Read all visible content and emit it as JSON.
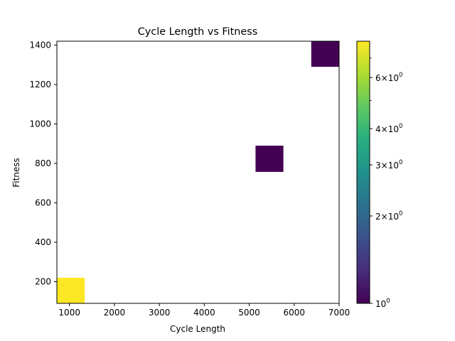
{
  "chart_data": {
    "type": "heatmap",
    "title": "Cycle Length vs Fitness",
    "xlabel": "Cycle Length",
    "ylabel": "Fitness",
    "xlim": [
      720,
      7000
    ],
    "ylim": [
      90,
      1420
    ],
    "x_ticks": [
      1000,
      2000,
      3000,
      4000,
      5000,
      6000,
      7000
    ],
    "y_ticks": [
      200,
      400,
      600,
      800,
      1000,
      1200,
      1400
    ],
    "colormap": "viridis",
    "color_scale": "log",
    "color_range": [
      1,
      8
    ],
    "colorbar_ticks": [
      {
        "value": 1,
        "label": "10^0"
      },
      {
        "value": 2,
        "label": "2×10^0"
      },
      {
        "value": 3,
        "label": "3×10^0"
      },
      {
        "value": 4,
        "label": "4×10^0"
      },
      {
        "value": 6,
        "label": "6×10^0"
      }
    ],
    "colorbar_minor_ticks": [
      5,
      7
    ],
    "cells": [
      {
        "x0": 720,
        "x1": 1340,
        "y0": 90,
        "y1": 220,
        "count": 8
      },
      {
        "x0": 5140,
        "x1": 5760,
        "y0": 757,
        "y1": 890,
        "count": 1
      },
      {
        "x0": 6380,
        "x1": 7000,
        "y0": 1290,
        "y1": 1420,
        "count": 1
      }
    ]
  },
  "colors": {
    "viridis_low": "#440154",
    "viridis_high": "#fde725"
  }
}
